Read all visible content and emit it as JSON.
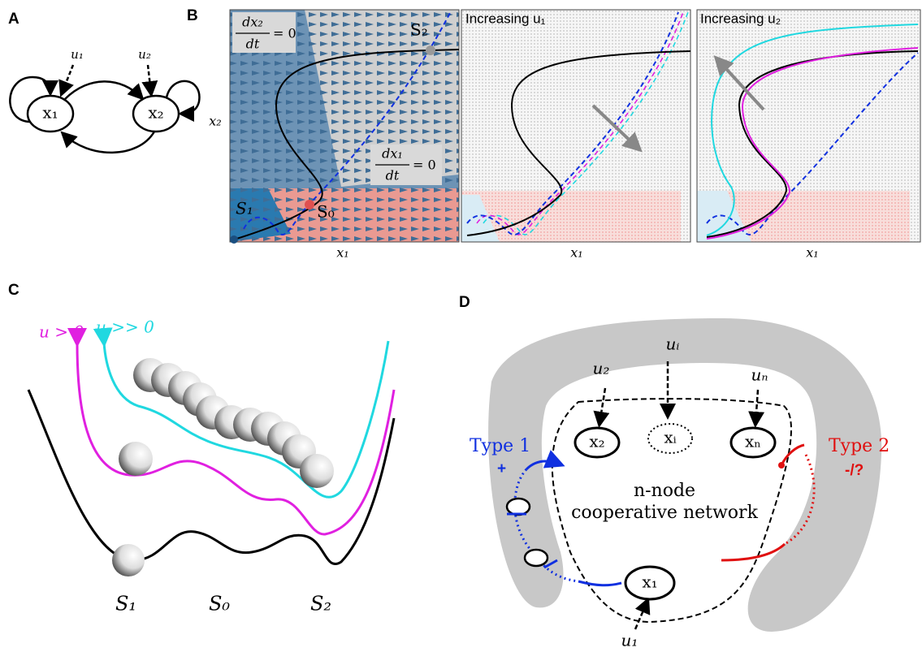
{
  "panel_labels": [
    "A",
    "B",
    "C",
    "D"
  ],
  "panel_a": {
    "inputs": [
      "u₁",
      "u₂"
    ],
    "nodes": [
      "x₁",
      "x₂"
    ]
  },
  "panel_b": {
    "x2_nullcline": {
      "numerator": "dx₂",
      "denominator": "dt",
      "rhs": "= 0"
    },
    "x1_nullcline": {
      "numerator": "dx₁",
      "denominator": "dt",
      "rhs": "= 0"
    },
    "states": [
      "S₁",
      "S₀",
      "S₂"
    ],
    "y_label": "x₂",
    "x_labels": [
      "x₁",
      "x₁",
      "x₁"
    ],
    "titles": [
      "Increasing u₁",
      "Increasing u₂"
    ]
  },
  "panel_c": {
    "curve_labels": [
      "u > 0",
      "u >> 0"
    ],
    "states": [
      "S₁",
      "S₀",
      "S₂"
    ]
  },
  "panel_d": {
    "inputs": [
      "uᵢ",
      "u₂",
      "uₙ",
      "u₁"
    ],
    "nodes": [
      "x₂",
      "xᵢ",
      "xₙ",
      "x₁"
    ],
    "type1": {
      "label": "Type 1",
      "sign": "+"
    },
    "type2": {
      "label": "Type 2",
      "sign": "-/?"
    },
    "network": [
      "n-node",
      "cooperative network"
    ]
  }
}
